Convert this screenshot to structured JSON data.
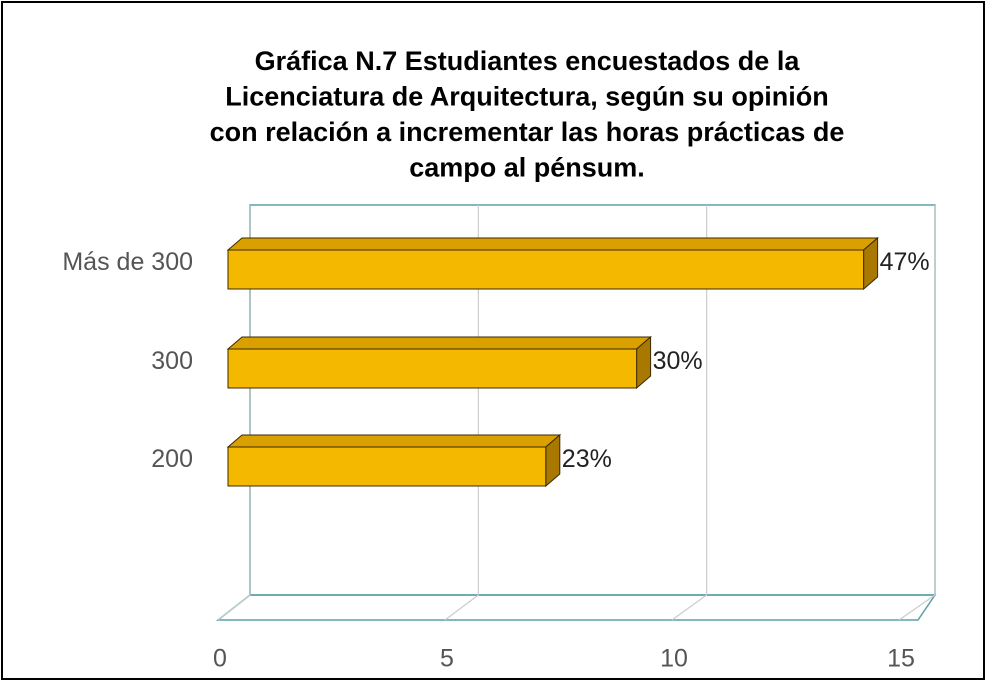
{
  "chart_data": {
    "type": "bar3d_horizontal",
    "title": [
      "Gráfica N.7 Estudiantes encuestados de la",
      "Licenciatura de Arquitectura, según su opinión",
      "con relación a incrementar las  horas prácticas de",
      "campo al pénsum."
    ],
    "categories": [
      "Más de 300",
      "300",
      "200"
    ],
    "values": [
      14,
      9,
      7
    ],
    "annotations": [
      "47%",
      "30%",
      "23%"
    ],
    "color": "#f5b800",
    "xlim": [
      0,
      15
    ],
    "xticks": [
      0,
      5,
      10,
      15
    ],
    "grid": true
  }
}
